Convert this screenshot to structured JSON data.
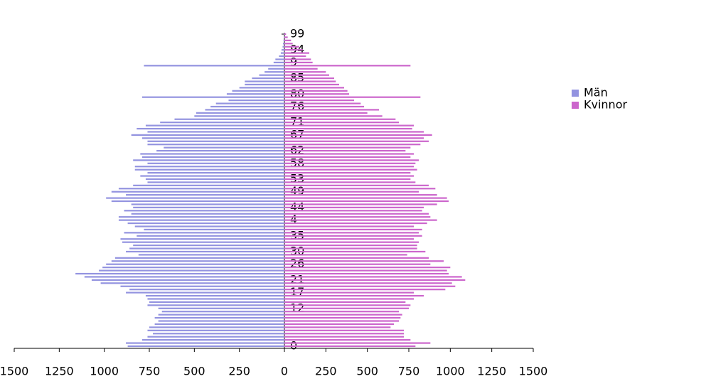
{
  "chart_data": {
    "type": "pyramid",
    "categories": [
      "0",
      null,
      null,
      null,
      null,
      null,
      null,
      null,
      null,
      null,
      null,
      null,
      "12",
      null,
      null,
      null,
      null,
      "17",
      null,
      null,
      null,
      "21",
      null,
      null,
      null,
      null,
      "26",
      null,
      null,
      null,
      "30",
      null,
      null,
      null,
      null,
      "35",
      null,
      null,
      null,
      null,
      "4",
      null,
      null,
      null,
      "44",
      null,
      null,
      null,
      null,
      "49",
      null,
      null,
      null,
      "53",
      null,
      null,
      null,
      null,
      "58",
      null,
      null,
      null,
      "62",
      null,
      null,
      null,
      null,
      "67",
      null,
      null,
      null,
      "71",
      null,
      null,
      null,
      null,
      "76",
      null,
      null,
      null,
      "80",
      null,
      null,
      null,
      null,
      "85",
      null,
      null,
      null,
      null,
      "9",
      null,
      null,
      null,
      "94",
      null,
      null,
      null,
      null,
      "99"
    ],
    "series": [
      {
        "name": "Män",
        "color": "#9393e0",
        "values": [
          -870,
          -880,
          -790,
          -760,
          -730,
          -760,
          -750,
          -720,
          -700,
          -720,
          -700,
          -680,
          -700,
          -760,
          -750,
          -760,
          -770,
          -880,
          -860,
          -910,
          -1020,
          -1070,
          -1110,
          -1160,
          -1030,
          -1010,
          -990,
          -960,
          -940,
          -810,
          -880,
          -860,
          -840,
          -900,
          -910,
          -820,
          -890,
          -780,
          -830,
          -870,
          -920,
          -920,
          -850,
          -890,
          -840,
          -850,
          -960,
          -990,
          -880,
          -960,
          -920,
          -840,
          -760,
          -770,
          -800,
          -760,
          -830,
          -830,
          -760,
          -840,
          -790,
          -800,
          -710,
          -670,
          -760,
          -760,
          -790,
          -850,
          -760,
          -820,
          -770,
          -690,
          -610,
          -500,
          -490,
          -440,
          -410,
          -380,
          -310,
          -790,
          -320,
          -290,
          -250,
          -220,
          -220,
          -180,
          -140,
          -110,
          -90,
          -780,
          -60,
          -50,
          -30,
          -20,
          -15,
          -10,
          -8,
          -5,
          -3,
          -2
        ]
      },
      {
        "name": "Kvinnor",
        "color": "#cc66cc",
        "values": [
          790,
          880,
          760,
          720,
          720,
          720,
          640,
          660,
          690,
          700,
          710,
          690,
          750,
          760,
          730,
          780,
          840,
          780,
          970,
          1030,
          1010,
          1090,
          1070,
          990,
          980,
          1000,
          880,
          960,
          870,
          740,
          850,
          800,
          800,
          810,
          780,
          830,
          810,
          830,
          780,
          860,
          920,
          880,
          870,
          830,
          840,
          920,
          990,
          980,
          920,
          810,
          910,
          870,
          790,
          760,
          780,
          760,
          800,
          780,
          790,
          810,
          760,
          780,
          730,
          760,
          820,
          870,
          840,
          890,
          840,
          770,
          780,
          690,
          670,
          590,
          500,
          570,
          480,
          460,
          420,
          820,
          390,
          380,
          360,
          330,
          310,
          300,
          270,
          250,
          200,
          760,
          170,
          160,
          130,
          150,
          110,
          90,
          50,
          40,
          20,
          10
        ]
      }
    ],
    "xlim": [
      -1500,
      1500
    ],
    "xticks": [
      {
        "value": -1500,
        "label": "1500"
      },
      {
        "value": -1250,
        "label": "1250"
      },
      {
        "value": -1000,
        "label": "1000"
      },
      {
        "value": -750,
        "label": "750"
      },
      {
        "value": -500,
        "label": "500"
      },
      {
        "value": -250,
        "label": "250"
      },
      0,
      250,
      500,
      750,
      1000,
      1250,
      1500
    ],
    "legend": "right"
  }
}
